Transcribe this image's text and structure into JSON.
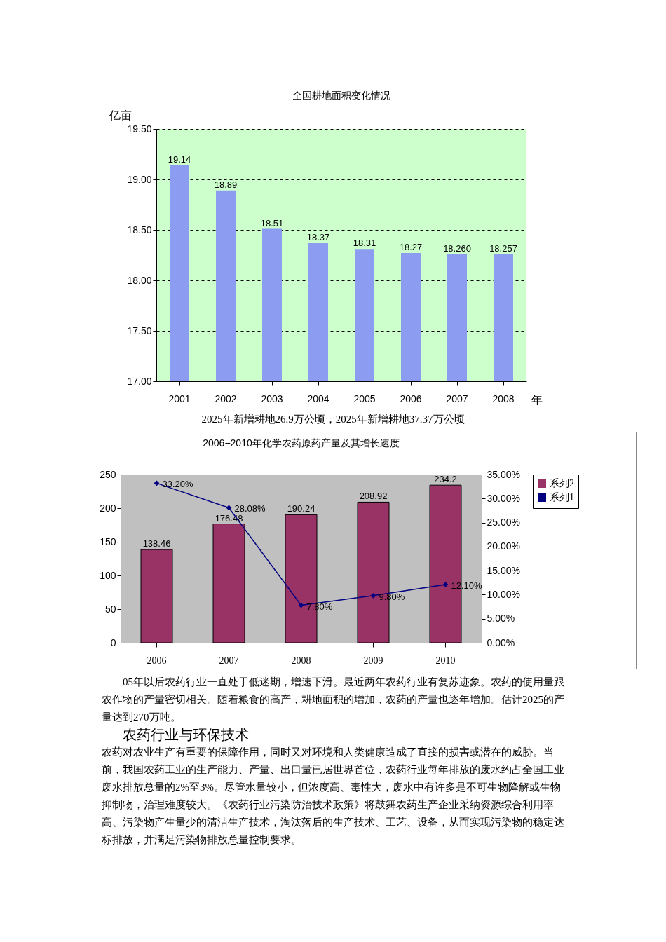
{
  "chart_data": [
    {
      "type": "bar",
      "title": "全国耕地面积变化情况",
      "ylabel": "亿亩",
      "xlabel": "年",
      "categories": [
        "2001",
        "2002",
        "2003",
        "2004",
        "2005",
        "2006",
        "2007",
        "2008"
      ],
      "values": [
        19.14,
        18.89,
        18.51,
        18.37,
        18.31,
        18.27,
        18.26,
        18.257
      ],
      "color": "#8c9cf0",
      "value_labels": [
        "19.14",
        "18.89",
        "18.51",
        "18.37",
        "18.31",
        "18.27",
        "18.260",
        "18.257"
      ],
      "ylim": [
        17,
        19.5
      ],
      "yticks": [
        {
          "value": 17,
          "label": "17.00"
        },
        {
          "value": 17.5,
          "label": "17.50"
        },
        {
          "value": 18,
          "label": "18.00"
        },
        {
          "value": 18.5,
          "label": "18.50"
        },
        {
          "value": 19,
          "label": "19.00"
        },
        {
          "value": 19.5,
          "label": "19.50"
        }
      ],
      "grid": "y",
      "legend": false,
      "annotations": [
        "2025年新增耕地26.9万公顷，2025年新增耕地37.37万公顷"
      ]
    },
    {
      "type": "bar",
      "title": "2006−2010年化学农药原药产量及其增长速度",
      "categories": [
        "2006",
        "2007",
        "2008",
        "2009",
        "2010"
      ],
      "series": [
        {
          "name": "系列2",
          "type": "bar",
          "color": "#993366",
          "values": [
            138.46,
            176.48,
            190.24,
            208.92,
            234.2
          ],
          "value_labels": [
            "138.46",
            "176.48",
            "190.24",
            "208.92",
            "234.2"
          ]
        },
        {
          "name": "系列1",
          "type": "line",
          "axis": "y2",
          "color": "#000080",
          "values": [
            33.2,
            28.08,
            7.8,
            9.8,
            12.1
          ],
          "value_labels": [
            "33.20%",
            "28.08%",
            "7.80%",
            "9.80%",
            "12.10%"
          ]
        }
      ],
      "ylim": [
        0,
        250
      ],
      "yticks": [
        0,
        50,
        100,
        150,
        200,
        250
      ],
      "y2lim": [
        0,
        35
      ],
      "y2ticks": [
        {
          "value": 0,
          "label": "0.00%"
        },
        {
          "value": 5,
          "label": "5.00%"
        },
        {
          "value": 10,
          "label": "10.00%"
        },
        {
          "value": 15,
          "label": "15.00%"
        },
        {
          "value": 20,
          "label": "20.00%"
        },
        {
          "value": 25,
          "label": "25.00%"
        },
        {
          "value": 30,
          "label": "30.00%"
        },
        {
          "value": 35,
          "label": "35.00%"
        }
      ],
      "grid": false,
      "legend": "right",
      "marker": "diamond",
      "line_style": "solid",
      "annotations": [
        "05年以后农药行业一直处于低迷期，增速下滑。最近两年农药行业有复苏迹象。农药的使用量跟农作物的产量密切相关。随着粮食的高产，耕地面积的增加，农药的产量也逐年增加。估计2025的产量达到270万吨。",
        "农药行业与环保技术",
        "农药对农业生产有重要的保障作用，同时又对环境和人类健康造成了直接的损害或潜在的威胁。当前，我国农药工业的生产能力、产量、出口量已居世界首位，农药行业每年排放的废水约占全国工业废水排放总量的2%至3%。尽管水量较小，但浓度高、毒性大，废水中有许多是不可生物降解或生物抑制物，治理难度较大。《农药行业污染防治技术政策》将鼓舞农药生产企业采纳资源综合利用率高、污染物产生量少的清洁生产技术，淘汰落后的生产技术、工艺、设备，从而实现污染物的稳定达标排放，并满足污染物排放总量控制要求。"
      ]
    }
  ]
}
